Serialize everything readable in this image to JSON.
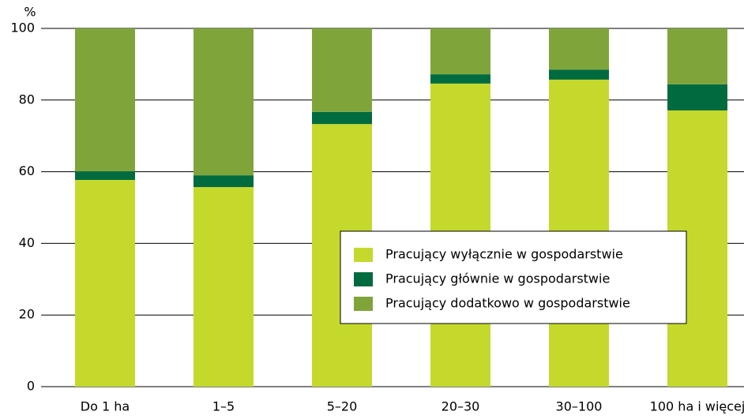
{
  "chart_data": {
    "type": "stacked_bar",
    "y_label": "%",
    "categories": [
      "Do 1 ha",
      "1–5",
      "5–20",
      "20–30",
      "30–100",
      "100 ha i więcej"
    ],
    "series": [
      {
        "name": "Pracujący wyłącznie w gospodarstwie",
        "color": "#c5d92d",
        "values": [
          57.7,
          55.7,
          73.3,
          84.6,
          85.7,
          77.1
        ]
      },
      {
        "name": "Pracujący głównie w gospodarstwie",
        "color": "#006b3f",
        "values": [
          2.4,
          3.3,
          3.4,
          2.6,
          2.8,
          7.3
        ]
      },
      {
        "name": "Pracujący dodatkowo w gospodarstwie",
        "color": "#7fa53a",
        "values": [
          39.9,
          41.0,
          23.3,
          12.8,
          11.5,
          15.6
        ]
      }
    ],
    "ylim": [
      0,
      100
    ],
    "yticks": [
      0,
      20,
      40,
      60,
      80,
      100
    ],
    "grid": true
  }
}
